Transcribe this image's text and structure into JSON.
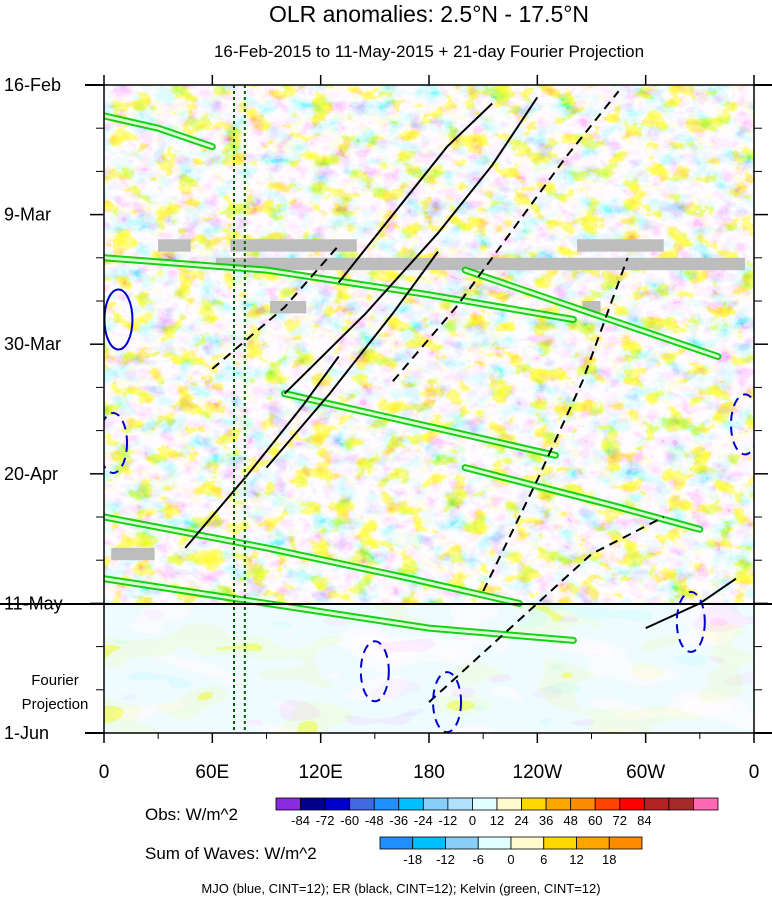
{
  "chart_data": {
    "type": "heatmap",
    "title": "OLR anomalies: 2.5°N - 17.5°N",
    "subtitle": "16-Feb-2015 to 11-May-2015 + 21-day Fourier Projection",
    "x_ticks": [
      {
        "lon": 0,
        "label": "0"
      },
      {
        "lon": 60,
        "label": "60E"
      },
      {
        "lon": 120,
        "label": "120E"
      },
      {
        "lon": 180,
        "label": "180"
      },
      {
        "lon": 240,
        "label": "120W"
      },
      {
        "lon": 300,
        "label": "60W"
      },
      {
        "lon": 360,
        "label": "0"
      }
    ],
    "x_range": [
      0,
      360
    ],
    "y_ticks": [
      {
        "day": 0,
        "label": "16-Feb"
      },
      {
        "day": 21,
        "label": "9-Mar"
      },
      {
        "day": 42,
        "label": "30-Mar"
      },
      {
        "day": 63,
        "label": "20-Apr"
      },
      {
        "day": 84,
        "label": "11-May"
      },
      {
        "day": 105,
        "label": "1-Jun"
      }
    ],
    "y_range_days": [
      0,
      105
    ],
    "observed_end_day": 84,
    "projection_label": [
      "Fourier",
      "Projection"
    ],
    "reference_lines_lon": [
      72,
      78
    ],
    "colorbar_obs": {
      "label": "Obs: W/m^2",
      "ticks": [
        "-84",
        "-72",
        "-60",
        "-48",
        "-36",
        "-24",
        "-12",
        "0",
        "12",
        "24",
        "36",
        "48",
        "60",
        "72",
        "84"
      ],
      "colors": [
        "#8a2be2",
        "#00008b",
        "#0000cd",
        "#4169e1",
        "#1e90ff",
        "#00bfff",
        "#87cefa",
        "#b0e2ff",
        "#e0ffff",
        "#fffacd",
        "#ffd700",
        "#ffa500",
        "#ff8c00",
        "#ff4500",
        "#ff0000",
        "#b22222",
        "#a52a2a",
        "#ff69b4"
      ]
    },
    "colorbar_waves": {
      "label": "Sum of Waves: W/m^2",
      "ticks": [
        "-18",
        "-12",
        "-6",
        "0",
        "6",
        "12",
        "18"
      ],
      "colors": [
        "#1e90ff",
        "#00bfff",
        "#87cefa",
        "#e0ffff",
        "#fffacd",
        "#ffd700",
        "#ffa500",
        "#ff8c00"
      ]
    },
    "footnote": "MJO (blue, CINT=12); ER (black, CINT=12); Kelvin (green, CINT=12)",
    "contour_colors": {
      "MJO": "#0000cd",
      "ER": "#000000",
      "Kelvin": "#00cc00"
    },
    "er_contours": [
      {
        "sign": "pos",
        "pts": [
          [
            130,
            32
          ],
          [
            160,
            21
          ],
          [
            190,
            10
          ],
          [
            215,
            3
          ]
        ]
      },
      {
        "sign": "pos",
        "pts": [
          [
            100,
            50
          ],
          [
            145,
            37
          ],
          [
            185,
            24
          ],
          [
            215,
            13
          ],
          [
            240,
            2
          ]
        ]
      },
      {
        "sign": "pos",
        "pts": [
          [
            90,
            62
          ],
          [
            125,
            50
          ],
          [
            160,
            37
          ],
          [
            185,
            27
          ]
        ]
      },
      {
        "sign": "pos",
        "pts": [
          [
            45,
            75
          ],
          [
            80,
            63
          ],
          [
            110,
            52
          ],
          [
            130,
            44
          ]
        ]
      },
      {
        "sign": "neg",
        "pts": [
          [
            160,
            48
          ],
          [
            195,
            36
          ],
          [
            225,
            24
          ],
          [
            255,
            12
          ],
          [
            285,
            1
          ]
        ]
      },
      {
        "sign": "neg",
        "pts": [
          [
            210,
            82
          ],
          [
            240,
            64
          ],
          [
            265,
            48
          ],
          [
            290,
            28
          ]
        ]
      },
      {
        "sign": "neg",
        "pts": [
          [
            60,
            46
          ],
          [
            100,
            36
          ],
          [
            130,
            26
          ]
        ]
      },
      {
        "sign": "neg",
        "pts": [
          [
            180,
            100
          ],
          [
            210,
            92
          ],
          [
            240,
            84
          ],
          [
            270,
            76
          ],
          [
            310,
            70
          ]
        ]
      },
      {
        "sign": "pos",
        "pts": [
          [
            300,
            88
          ],
          [
            330,
            84
          ],
          [
            350,
            80
          ]
        ]
      }
    ],
    "kelvin_bands": [
      {
        "pts": [
          [
            0,
            5
          ],
          [
            30,
            7
          ],
          [
            60,
            10
          ]
        ]
      },
      {
        "pts": [
          [
            0,
            28
          ],
          [
            90,
            30
          ],
          [
            180,
            34
          ],
          [
            260,
            38
          ]
        ]
      },
      {
        "pts": [
          [
            200,
            30
          ],
          [
            280,
            38
          ],
          [
            340,
            44
          ]
        ]
      },
      {
        "pts": [
          [
            0,
            70
          ],
          [
            90,
            75
          ],
          [
            170,
            80
          ],
          [
            230,
            84
          ]
        ]
      },
      {
        "pts": [
          [
            100,
            50
          ],
          [
            190,
            56
          ],
          [
            250,
            60
          ]
        ]
      },
      {
        "pts": [
          [
            200,
            62
          ],
          [
            280,
            68
          ],
          [
            330,
            72
          ]
        ]
      },
      {
        "pts": [
          [
            0,
            80
          ],
          [
            90,
            84
          ],
          [
            180,
            88
          ],
          [
            260,
            90
          ]
        ]
      }
    ],
    "mjo_contours": [
      {
        "sign": "pos",
        "center": [
          8,
          38
        ]
      },
      {
        "sign": "neg",
        "center": [
          5,
          58
        ]
      },
      {
        "sign": "neg",
        "center": [
          355,
          55
        ]
      },
      {
        "sign": "neg",
        "center": [
          150,
          95
        ]
      },
      {
        "sign": "neg",
        "center": [
          190,
          100
        ]
      },
      {
        "sign": "neg",
        "center": [
          325,
          87
        ]
      }
    ],
    "missing_bars": [
      {
        "lon": [
          30,
          48
        ],
        "day": [
          25,
          27
        ]
      },
      {
        "lon": [
          62,
          355
        ],
        "day": [
          28,
          30
        ]
      },
      {
        "lon": [
          70,
          140
        ],
        "day": [
          25,
          27
        ]
      },
      {
        "lon": [
          262,
          310
        ],
        "day": [
          25,
          27
        ]
      },
      {
        "lon": [
          92,
          112
        ],
        "day": [
          35,
          37
        ]
      },
      {
        "lon": [
          265,
          275
        ],
        "day": [
          35,
          37
        ]
      },
      {
        "lon": [
          4,
          28
        ],
        "day": [
          75,
          77
        ]
      }
    ]
  }
}
